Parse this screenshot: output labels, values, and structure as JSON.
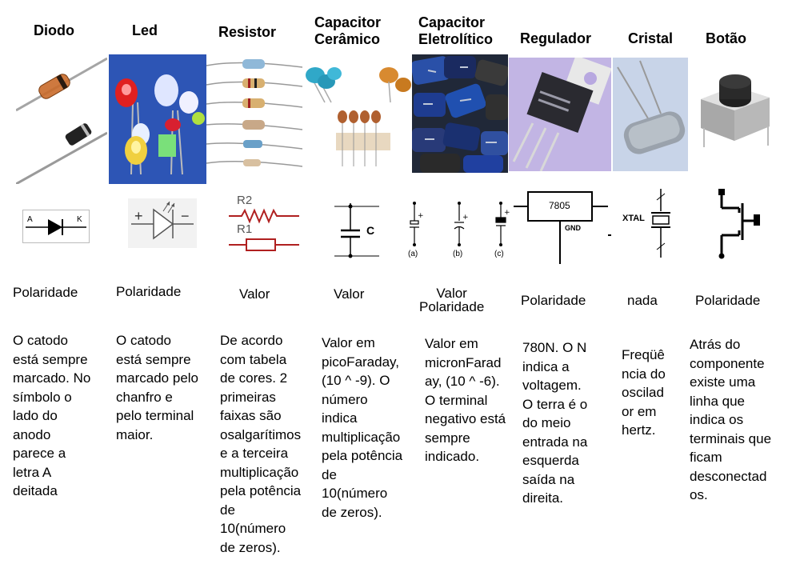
{
  "columns": [
    {
      "id": "diodo",
      "title": "Diodo",
      "symbol_labels": [
        "A",
        "K"
      ],
      "property": "Polaridade",
      "description": "O catodo\nestá sempre\nmarcado. No\nsímbolo o\nlado do\nanodo\nparece a\nletra A\ndeitada"
    },
    {
      "id": "led",
      "title": "Led",
      "symbol_labels": [
        "+",
        "−"
      ],
      "property": "Polaridade",
      "description": "O catodo\nestá sempre\nmarcado pelo\nchanfro e\npelo terminal\nmaior."
    },
    {
      "id": "resistor",
      "title": "Resistor",
      "symbol_labels": [
        "R2",
        "R1"
      ],
      "property": "Valor",
      "description": "De acordo\ncom tabela\nde cores. 2\nprimeiras\nfaixas são\nosalgarítimos\ne a terceira\nmultiplicação\npela potência\nde\n10(número\nde zeros)."
    },
    {
      "id": "capacitor-ceramico",
      "title": "Capacitor\nCerâmico",
      "symbol_labels": [
        "C"
      ],
      "property": "Valor",
      "description": "Valor em\npicoFaraday,\n(10 ^ -9). O\nnúmero\nindica\nmultiplicação\npela potência\nde\n10(número\nde zeros)."
    },
    {
      "id": "capacitor-eletrolitico",
      "title": "Capacitor\nEletrolítico",
      "symbol_labels": [
        "(a)",
        "(b)",
        "(c)"
      ],
      "property": "Valor\nPolaridade",
      "description": "Valor em\nmicronFarad\nay, (10 ^ -6).\nO terminal\nnegativo está\nsempre\nindicado."
    },
    {
      "id": "regulador",
      "title": "Regulador",
      "symbol_labels": [
        "7805",
        "GND"
      ],
      "property": "Polaridade",
      "description": "780N. O N\nindica a\nvoltagem.\nO terra é o\ndo meio\nentrada na\nesquerda\nsaída na\ndireita."
    },
    {
      "id": "cristal",
      "title": "Cristal",
      "symbol_labels": [
        "XTAL"
      ],
      "property": "nada",
      "description": "Freqüê\nncia do\noscilad\nor em\nhertz."
    },
    {
      "id": "botao",
      "title": "Botão",
      "symbol_labels": [],
      "property": "Polaridade",
      "description": "Atrás do\ncomponente\nexiste uma\nlinha que\nindica os\nterminais que\nficam\ndesconectad\nos."
    }
  ]
}
